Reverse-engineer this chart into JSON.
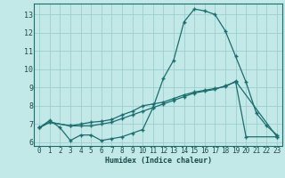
{
  "xlabel": "Humidex (Indice chaleur)",
  "bg_color": "#c2e8e8",
  "grid_color": "#9ecece",
  "line_color": "#1a6e6e",
  "xlim": [
    -0.5,
    23.5
  ],
  "ylim": [
    5.8,
    13.6
  ],
  "yticks": [
    6,
    7,
    8,
    9,
    10,
    11,
    12,
    13
  ],
  "xticks": [
    0,
    1,
    2,
    3,
    4,
    5,
    6,
    7,
    8,
    9,
    10,
    11,
    12,
    13,
    14,
    15,
    16,
    17,
    18,
    19,
    20,
    21,
    22,
    23
  ],
  "series1_x": [
    0,
    1,
    2,
    3,
    4,
    5,
    6,
    7,
    8,
    9,
    10,
    11,
    12,
    13,
    14,
    15,
    16,
    17,
    18,
    19,
    20,
    21,
    22,
    23
  ],
  "series1_y": [
    6.8,
    7.2,
    6.8,
    6.1,
    6.4,
    6.4,
    6.1,
    6.2,
    6.3,
    6.5,
    6.7,
    7.9,
    9.5,
    10.5,
    12.6,
    13.3,
    13.2,
    13.0,
    12.1,
    10.7,
    9.3,
    7.6,
    6.9,
    6.4
  ],
  "series2_x": [
    0,
    1,
    3,
    4,
    5,
    6,
    7,
    8,
    9,
    10,
    11,
    12,
    13,
    14,
    15,
    16,
    17,
    18,
    19,
    20,
    23
  ],
  "series2_y": [
    6.8,
    7.1,
    6.9,
    6.9,
    6.9,
    7.0,
    7.1,
    7.3,
    7.5,
    7.7,
    7.9,
    8.1,
    8.3,
    8.5,
    8.7,
    8.8,
    8.9,
    9.1,
    9.3,
    6.3,
    6.3
  ],
  "series3_x": [
    0,
    1,
    3,
    4,
    5,
    6,
    7,
    8,
    9,
    10,
    11,
    12,
    13,
    14,
    15,
    16,
    17,
    18,
    19,
    23
  ],
  "series3_y": [
    6.8,
    7.1,
    6.9,
    7.0,
    7.1,
    7.15,
    7.25,
    7.5,
    7.7,
    8.0,
    8.1,
    8.2,
    8.4,
    8.6,
    8.75,
    8.85,
    8.95,
    9.05,
    9.35,
    6.3
  ]
}
